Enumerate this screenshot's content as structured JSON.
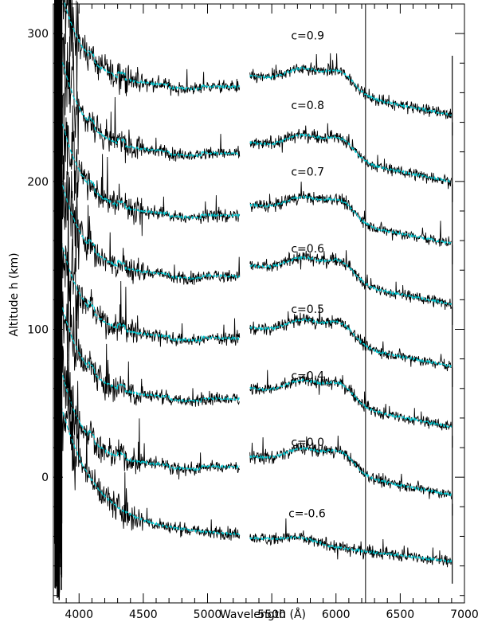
{
  "chart_data": {
    "type": "line",
    "xlabel": "Wavelength (Å)",
    "ylabel": "Altitude h (km)",
    "xlim": [
      3800,
      7000
    ],
    "ylim": [
      -85,
      320
    ],
    "x_ticks": [
      4000,
      4500,
      5000,
      5500,
      6000,
      6500,
      7000
    ],
    "x_tick_labels": [
      "4000",
      "4500",
      "5000",
      "5500",
      "6000",
      "6500",
      "7000"
    ],
    "y_ticks": [
      0,
      100,
      200,
      300
    ],
    "y_tick_labels": [
      "0",
      "100",
      "200",
      "300"
    ],
    "gap": [
      5250,
      5330
    ],
    "spike_x": 6230,
    "grid": false,
    "colors": {
      "observed": "#000000",
      "model": "#00c8d2"
    },
    "series": [
      {
        "label": "c=0.9",
        "offset": 263,
        "label_x": 5650,
        "label_y": 296
      },
      {
        "label": "c=0.8",
        "offset": 218,
        "label_x": 5650,
        "label_y": 249
      },
      {
        "label": "c=0.7",
        "offset": 176,
        "label_x": 5650,
        "label_y": 204
      },
      {
        "label": "c=0.6",
        "offset": 135,
        "label_x": 5650,
        "label_y": 152
      },
      {
        "label": "c=0.5",
        "offset": 93,
        "label_x": 5650,
        "label_y": 111
      },
      {
        "label": "c=0.4",
        "offset": 52,
        "label_x": 5650,
        "label_y": 66
      },
      {
        "label": "c=0.0",
        "offset": 6,
        "label_x": 5650,
        "label_y": 21
      },
      {
        "label": "c=-0.6",
        "offset": -40,
        "label_x": 5630,
        "label_y": -27
      }
    ]
  }
}
